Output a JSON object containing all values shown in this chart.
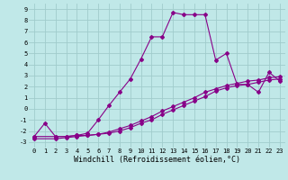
{
  "xlabel": "Windchill (Refroidissement éolien,°C)",
  "xlim": [
    -0.5,
    23.5
  ],
  "ylim": [
    -3.5,
    9.5
  ],
  "xtick_labels": [
    "0",
    "1",
    "2",
    "3",
    "4",
    "5",
    "6",
    "7",
    "8",
    "9",
    "10",
    "11",
    "12",
    "13",
    "14",
    "15",
    "16",
    "17",
    "18",
    "19",
    "20",
    "21",
    "22",
    "23"
  ],
  "ytick_labels": [
    "-3",
    "-2",
    "-1",
    "0",
    "1",
    "2",
    "3",
    "4",
    "5",
    "6",
    "7",
    "8",
    "9"
  ],
  "xticks": [
    0,
    1,
    2,
    3,
    4,
    5,
    6,
    7,
    8,
    9,
    10,
    11,
    12,
    13,
    14,
    15,
    16,
    17,
    18,
    19,
    20,
    21,
    22,
    23
  ],
  "yticks": [
    -3,
    -2,
    -1,
    0,
    1,
    2,
    3,
    4,
    5,
    6,
    7,
    8,
    9
  ],
  "background_color": "#c0e8e8",
  "grid_color": "#a0cccc",
  "line_color": "#880088",
  "series1_x": [
    0,
    1,
    2,
    3,
    4,
    5,
    6,
    7,
    8,
    9,
    10,
    11,
    12,
    13,
    14,
    15,
    16,
    17,
    18,
    19,
    20,
    21,
    22,
    23
  ],
  "series1_y": [
    -2.5,
    -1.3,
    -2.5,
    -2.5,
    -2.4,
    -2.2,
    -1.0,
    0.3,
    1.5,
    2.7,
    4.5,
    6.5,
    6.5,
    8.7,
    8.5,
    8.5,
    8.5,
    4.4,
    5.0,
    2.2,
    2.2,
    1.5,
    3.3,
    2.5
  ],
  "series2_x": [
    0,
    2,
    3,
    4,
    5,
    6,
    7,
    8,
    9,
    10,
    11,
    12,
    13,
    14,
    15,
    16,
    17,
    18,
    19,
    20,
    21,
    22,
    23
  ],
  "series2_y": [
    -2.5,
    -2.5,
    -2.5,
    -2.4,
    -2.4,
    -2.3,
    -2.2,
    -2.0,
    -1.7,
    -1.3,
    -1.0,
    -0.5,
    -0.1,
    0.3,
    0.7,
    1.1,
    1.6,
    1.9,
    2.1,
    2.2,
    2.4,
    2.6,
    2.7
  ],
  "series3_x": [
    0,
    2,
    3,
    4,
    5,
    6,
    7,
    8,
    9,
    10,
    11,
    12,
    13,
    14,
    15,
    16,
    17,
    18,
    19,
    20,
    21,
    22,
    23
  ],
  "series3_y": [
    -2.7,
    -2.7,
    -2.6,
    -2.5,
    -2.4,
    -2.3,
    -2.1,
    -1.8,
    -1.5,
    -1.1,
    -0.7,
    -0.2,
    0.2,
    0.6,
    1.0,
    1.5,
    1.8,
    2.1,
    2.3,
    2.5,
    2.6,
    2.8,
    2.9
  ],
  "tick_fontsize": 5,
  "label_fontsize": 6,
  "linewidth": 0.8,
  "markersize": 2.0
}
